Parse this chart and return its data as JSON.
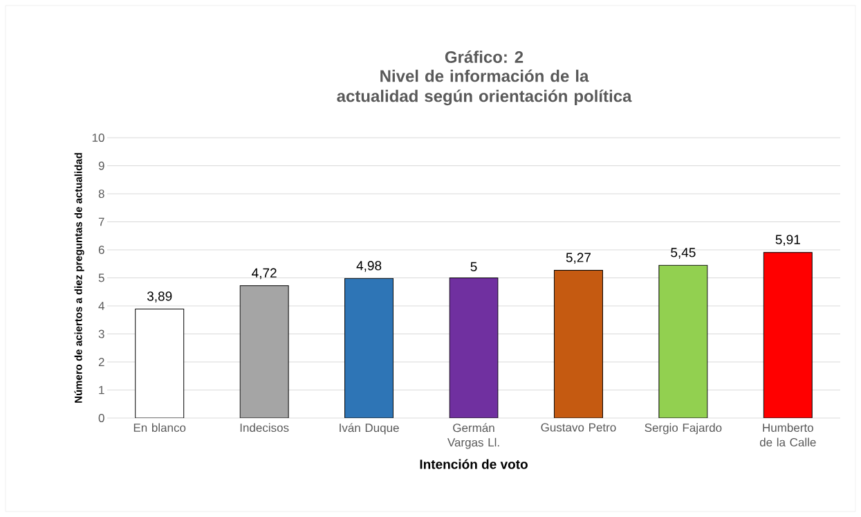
{
  "chart_data": {
    "type": "bar",
    "title": "Gráfico: 2",
    "subtitle": "Nivel de información de la actualidad según orientación política",
    "xlabel": "Intención de voto",
    "ylabel": "Número de aciertos a diez preguntas de actualidad",
    "categories": [
      "En blanco",
      "Indecisos",
      "Iván Duque",
      "Germán Vargas Ll.",
      "Gustavo Petro",
      "Sergio Fajardo",
      "Humberto de la Calle"
    ],
    "values": [
      3.89,
      4.72,
      4.98,
      5,
      5.27,
      5.45,
      5.91
    ],
    "value_labels": [
      "3,89",
      "4,72",
      "4,98",
      "5",
      "5,27",
      "5,45",
      "5,91"
    ],
    "colors": [
      "#ffffff",
      "#a5a5a5",
      "#2e75b6",
      "#7030a0",
      "#c55a11",
      "#92d050",
      "#ff0000"
    ],
    "ylim": [
      0,
      10
    ],
    "yticks": [
      0,
      1,
      2,
      3,
      4,
      5,
      6,
      7,
      8,
      9,
      10
    ],
    "grid": "y"
  }
}
